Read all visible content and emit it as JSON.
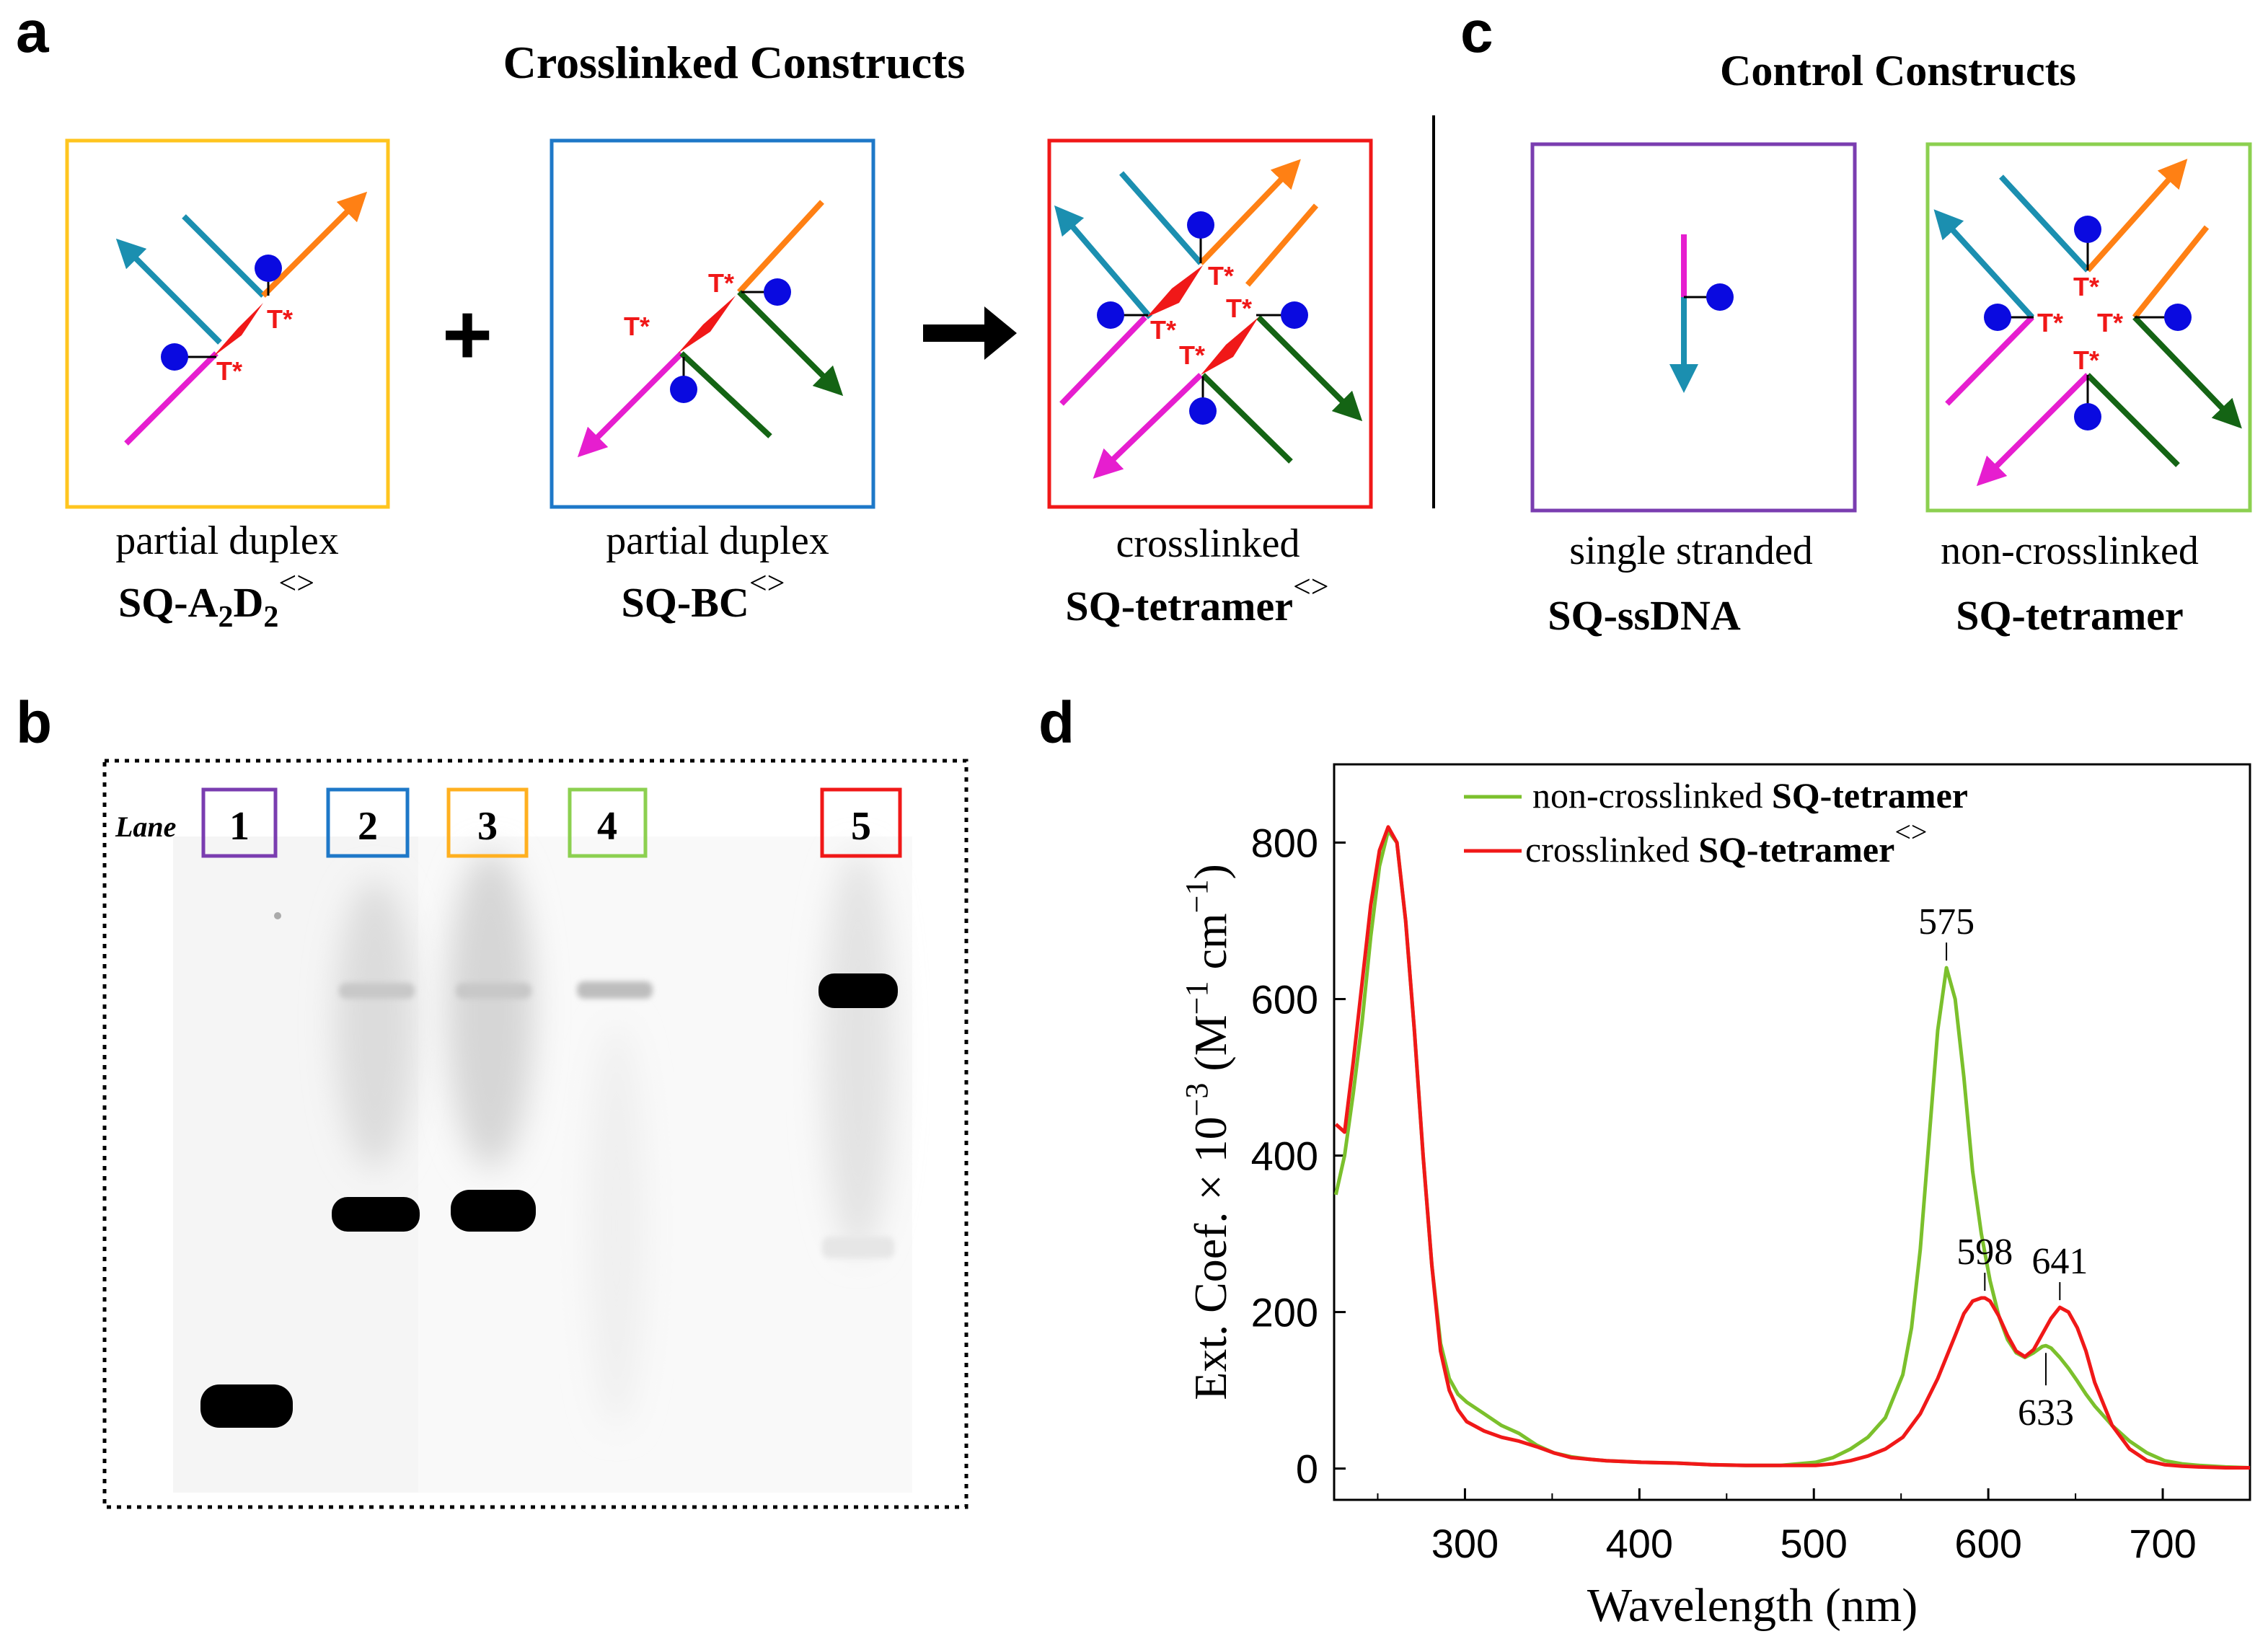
{
  "panels": {
    "a": {
      "letter": "a",
      "title": "Crosslinked Constructs",
      "plus": "+",
      "constructs": [
        {
          "caption": "partial duplex",
          "name_prefix": "SQ-A",
          "name_sub1": "2",
          "name_mid": "D",
          "name_sub2": "2",
          "name_sup": "<>",
          "color": "#FFC51F"
        },
        {
          "caption": "partial duplex",
          "name": "SQ-BC",
          "name_sup": "<>",
          "color": "#1E78C8"
        },
        {
          "caption": "crosslinked",
          "name": "SQ-tetramer",
          "name_sup": "<>",
          "color": "#F01818"
        }
      ]
    },
    "c": {
      "letter": "c",
      "title": "Control Constructs",
      "constructs": [
        {
          "caption": "single stranded",
          "name": "SQ-ssDNA",
          "color": "#7A3DB0"
        },
        {
          "caption": "non-crosslinked",
          "name": "SQ-tetramer",
          "color": "#8CD050"
        }
      ]
    },
    "b": {
      "letter": "b",
      "lane_label": "Lane",
      "lanes": [
        {
          "number": "1",
          "color": "#7A3DB0"
        },
        {
          "number": "2",
          "color": "#1E78C8"
        },
        {
          "number": "3",
          "color": "#FFB020"
        },
        {
          "number": "4",
          "color": "#8CD050"
        },
        {
          "number": "5",
          "color": "#F01818"
        }
      ]
    },
    "d": {
      "letter": "d"
    }
  },
  "diagram_labels": {
    "tstar": "T*"
  },
  "strand_colors": {
    "teal": "#1B8FB0",
    "orange": "#FF8014",
    "magenta": "#E61ECF",
    "green": "#146414",
    "dye": "#0A0AE0",
    "linker": "#F01818"
  },
  "chart_data": {
    "type": "line",
    "title": "",
    "xlabel": "Wavelength (nm)",
    "ylabel": "Ext. Coef. × 10⁻³ (M⁻¹ cm⁻¹)",
    "ylabel_parts": {
      "main": "Ext. Coef. × 10",
      "exp": "−3",
      "unit1": " (M",
      "exp2": "−1",
      "unit2": " cm",
      "exp3": "−1",
      "close": ")"
    },
    "xlim": [
      225,
      750
    ],
    "ylim": [
      -40,
      900
    ],
    "x_ticks": [
      300,
      400,
      500,
      600,
      700
    ],
    "y_ticks": [
      0,
      200,
      400,
      600,
      800
    ],
    "legend": [
      {
        "name_plain": "non-crosslinked ",
        "name_bold": "SQ-tetramer",
        "sup": "",
        "color": "#7BC02C"
      },
      {
        "name_plain": "crosslinked ",
        "name_bold": "SQ-tetramer",
        "sup": "<>",
        "color": "#F01818"
      }
    ],
    "legend_position": "top-center",
    "series": [
      {
        "name": "non-crosslinked SQ-tetramer",
        "color": "#7BC02C",
        "x": [
          226,
          231,
          236,
          241,
          246,
          251,
          256,
          261,
          266,
          271,
          276,
          281,
          286,
          291,
          296,
          301,
          311,
          321,
          331,
          341,
          351,
          361,
          371,
          381,
          401,
          421,
          441,
          461,
          481,
          501,
          511,
          521,
          531,
          541,
          551,
          556,
          561,
          566,
          571,
          576,
          581,
          586,
          591,
          596,
          601,
          606,
          611,
          616,
          621,
          626,
          631,
          633,
          636,
          641,
          646,
          651,
          656,
          661,
          671,
          681,
          691,
          701,
          711,
          721,
          736,
          750
        ],
        "y": [
          350,
          400,
          480,
          570,
          680,
          770,
          815,
          800,
          700,
          560,
          400,
          260,
          160,
          115,
          95,
          85,
          70,
          55,
          45,
          30,
          20,
          15,
          12,
          10,
          8,
          7,
          5,
          4,
          4,
          8,
          14,
          25,
          40,
          65,
          120,
          180,
          280,
          420,
          560,
          640,
          600,
          500,
          380,
          300,
          240,
          195,
          165,
          148,
          142,
          148,
          156,
          157,
          154,
          142,
          128,
          112,
          95,
          80,
          55,
          35,
          20,
          10,
          6,
          4,
          2,
          1
        ]
      },
      {
        "name": "crosslinked SQ-tetramer<>",
        "color": "#F01818",
        "x": [
          226,
          231,
          236,
          241,
          246,
          251,
          256,
          261,
          266,
          271,
          276,
          281,
          286,
          291,
          296,
          301,
          311,
          321,
          331,
          341,
          351,
          361,
          371,
          381,
          401,
          421,
          441,
          461,
          481,
          501,
          511,
          521,
          531,
          541,
          551,
          561,
          571,
          581,
          586,
          591,
          596,
          598,
          601,
          606,
          611,
          616,
          621,
          626,
          631,
          636,
          641,
          646,
          651,
          656,
          661,
          671,
          681,
          691,
          701,
          711,
          721,
          736,
          750
        ],
        "y": [
          440,
          430,
          520,
          620,
          720,
          790,
          820,
          800,
          700,
          560,
          400,
          260,
          150,
          100,
          75,
          60,
          48,
          40,
          35,
          28,
          20,
          14,
          12,
          10,
          8,
          7,
          5,
          4,
          4,
          4,
          6,
          10,
          16,
          25,
          40,
          70,
          115,
          170,
          198,
          214,
          218,
          218,
          214,
          195,
          170,
          150,
          143,
          152,
          172,
          192,
          206,
          200,
          180,
          150,
          110,
          55,
          25,
          10,
          5,
          3,
          2,
          1,
          1
        ]
      }
    ],
    "annotations": [
      {
        "text": "575",
        "x": 576,
        "y": 640
      },
      {
        "text": "598",
        "x": 598,
        "y": 218
      },
      {
        "text": "641",
        "x": 641,
        "y": 206
      },
      {
        "text": "633",
        "x": 633,
        "y": 157
      }
    ]
  }
}
